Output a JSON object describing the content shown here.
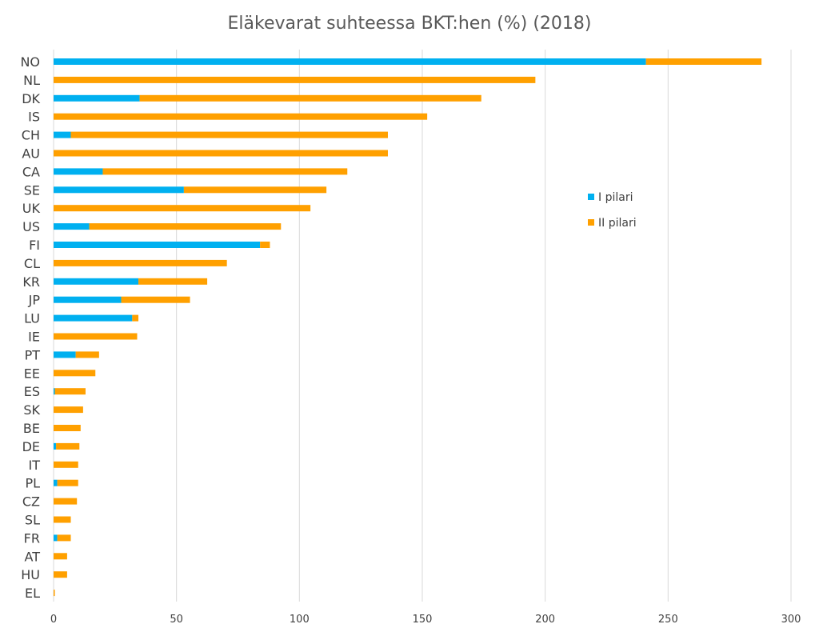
{
  "chart_data": {
    "type": "bar",
    "orientation": "horizontal",
    "stacked": true,
    "title": "Eläkevarat suhteessa BKT:hen (%) (2018)",
    "xlabel": "",
    "ylabel": "",
    "xlim": [
      0,
      300
    ],
    "x_ticks": [
      0,
      50,
      100,
      150,
      200,
      250,
      300
    ],
    "grid": true,
    "legend_position": "right",
    "categories": [
      "NO",
      "NL",
      "DK",
      "IS",
      "CH",
      "AU",
      "CA",
      "SE",
      "UK",
      "US",
      "FI",
      "CL",
      "KR",
      "JP",
      "LU",
      "IE",
      "PT",
      "EE",
      "ES",
      "SK",
      "BE",
      "DE",
      "IT",
      "PL",
      "CZ",
      "SL",
      "FR",
      "AT",
      "HU",
      "EL"
    ],
    "series": [
      {
        "name": "I pilari",
        "color": "#00b0f0",
        "values": [
          241,
          0,
          35,
          0,
          7,
          0,
          20,
          53,
          0,
          14.5,
          84,
          0,
          34.5,
          27.5,
          32,
          0,
          9,
          0,
          0.5,
          0,
          0,
          1,
          0,
          1.5,
          0,
          0,
          1.5,
          0,
          0,
          0
        ]
      },
      {
        "name": "II pilari",
        "color": "#ffa000",
        "values": [
          47,
          196,
          139,
          152,
          129,
          136,
          99.5,
          58,
          104.5,
          78,
          4,
          70.5,
          28,
          28,
          2.5,
          34,
          9.5,
          17,
          12.5,
          12,
          11,
          9.5,
          10,
          8.5,
          9.5,
          7,
          5.5,
          5.5,
          5.5,
          0.5
        ]
      }
    ]
  }
}
